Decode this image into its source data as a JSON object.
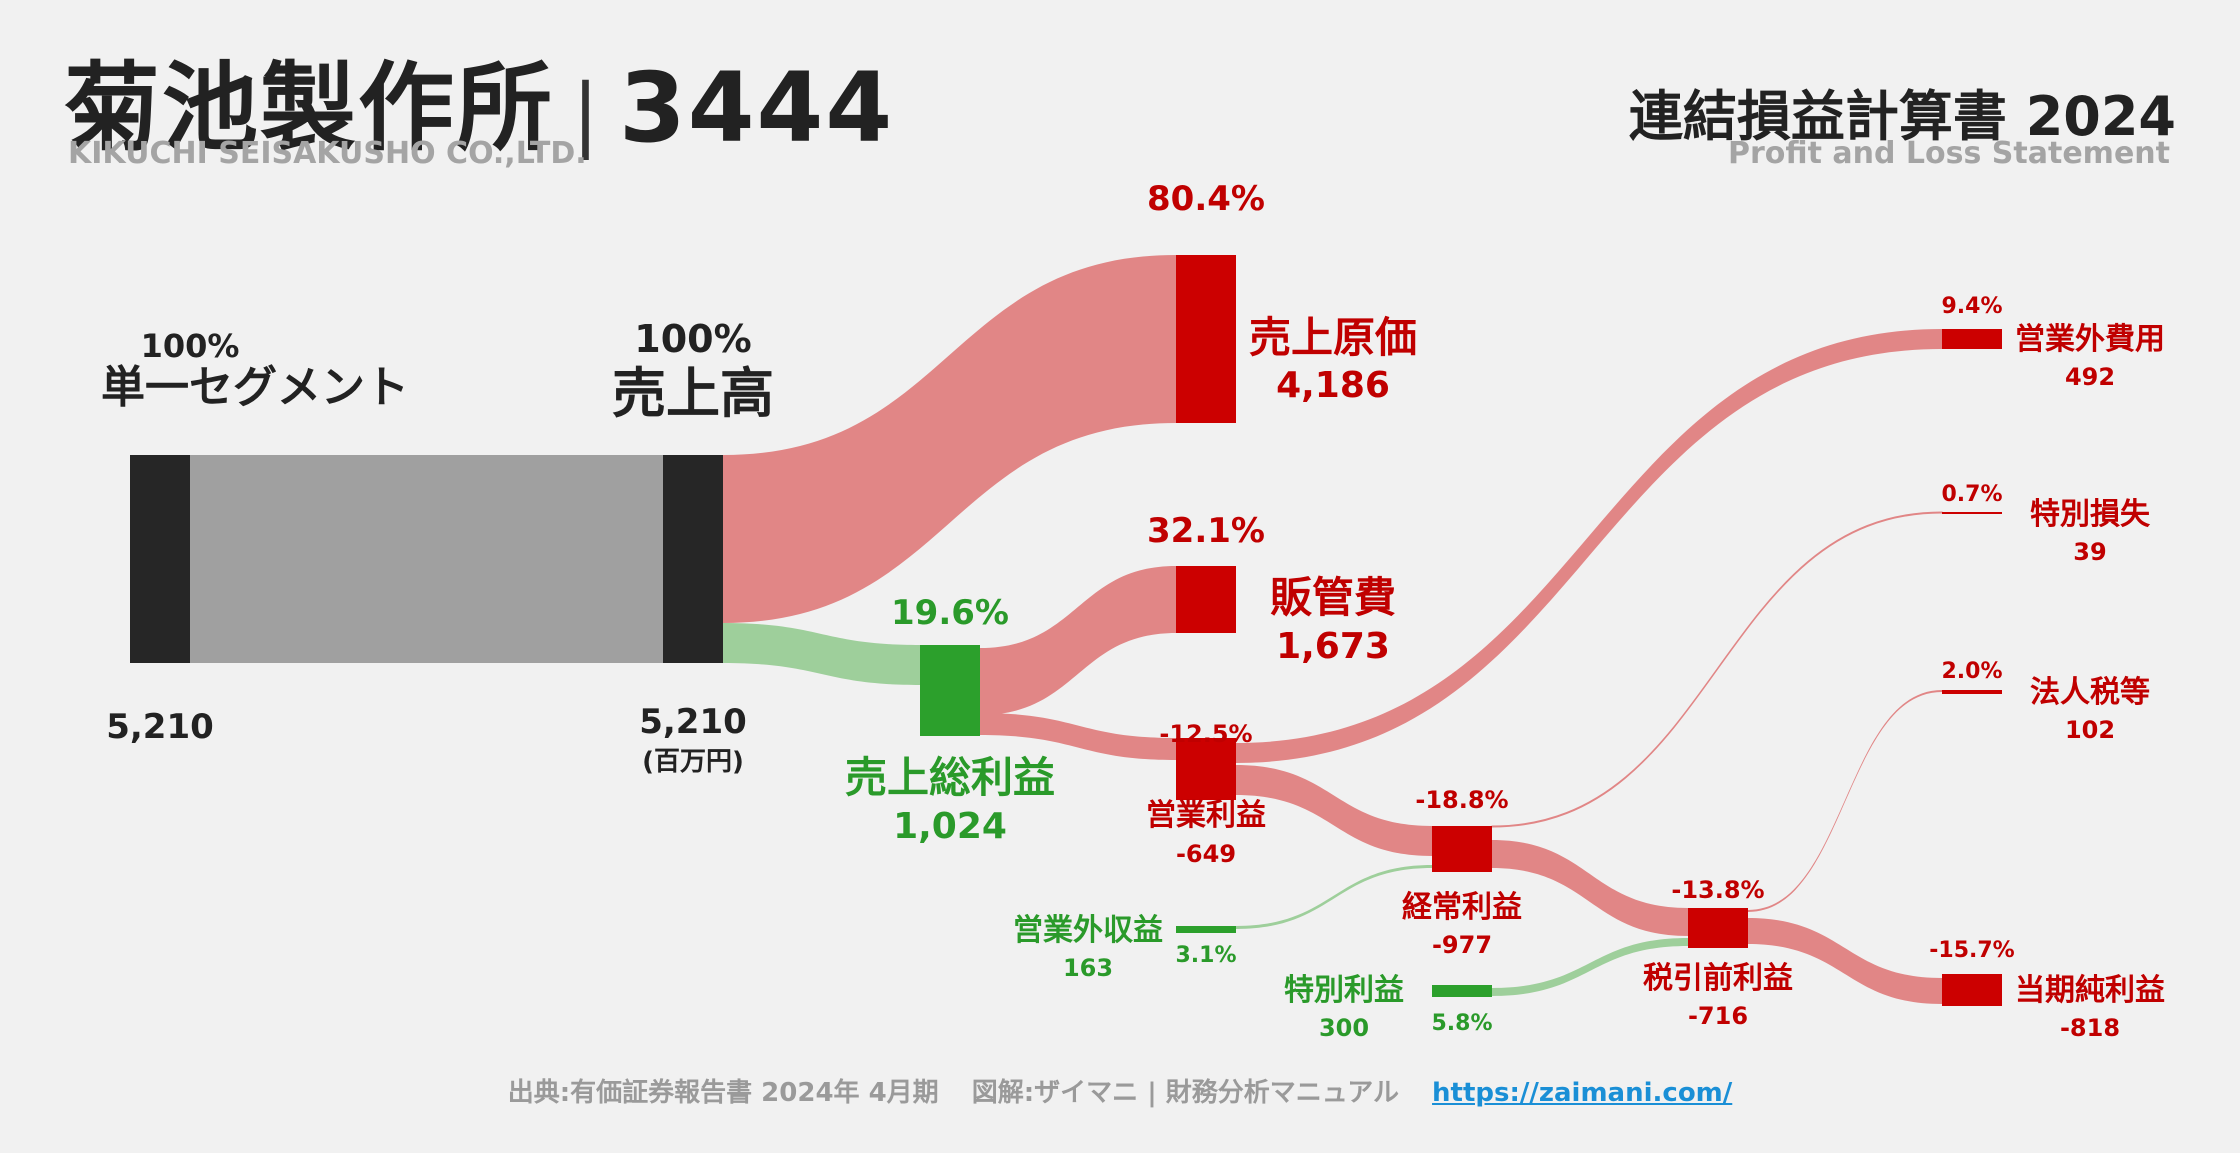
{
  "header": {
    "company_ja": "菊池製作所",
    "separator": "|",
    "ticker": "3444",
    "company_en": "KIKUCHI SEISAKUSHO CO.,LTD.",
    "statement_ja": "連結損益計算書 2024",
    "statement_en": "Profit and Loss Statement"
  },
  "footer": {
    "source": "出典:有価証券報告書 2024年 4月期",
    "credit": "図解:ザイマニ | 財務分析マニュアル",
    "url": "https://zaimani.com/"
  },
  "colors": {
    "dark": "#262626",
    "segment_flow": "#a0a0a0",
    "red_node": "#cc0000",
    "red_flow": "#e18686",
    "green_node": "#2ca02c",
    "green_flow": "#9ecf9b",
    "red_text": "#c00000",
    "green_text": "#2a9a2a",
    "dark_text": "#222222"
  },
  "chart_data": {
    "type": "sankey",
    "unit": "(百万円)",
    "nodes": [
      {
        "id": "segment",
        "label": "単一セグメント",
        "value": "5,210",
        "pct": "100%",
        "color": "dark"
      },
      {
        "id": "sales",
        "label": "売上高",
        "value": "5,210",
        "pct": "100%",
        "color": "dark"
      },
      {
        "id": "cogs",
        "label": "売上原価",
        "value": "4,186",
        "pct": "80.4%",
        "color": "red"
      },
      {
        "id": "gross",
        "label": "売上総利益",
        "value": "1,024",
        "pct": "19.6%",
        "color": "green"
      },
      {
        "id": "sga",
        "label": "販管費",
        "value": "1,673",
        "pct": "32.1%",
        "color": "red"
      },
      {
        "id": "op",
        "label": "営業利益",
        "value": "-649",
        "pct": "-12.5%",
        "color": "red"
      },
      {
        "id": "nonop_inc",
        "label": "営業外収益",
        "value": "163",
        "pct": "3.1%",
        "color": "green"
      },
      {
        "id": "nonop_exp",
        "label": "営業外費用",
        "value": "492",
        "pct": "9.4%",
        "color": "red"
      },
      {
        "id": "ordinary",
        "label": "経常利益",
        "value": "-977",
        "pct": "-18.8%",
        "color": "red"
      },
      {
        "id": "special_gain",
        "label": "特別利益",
        "value": "300",
        "pct": "5.8%",
        "color": "green"
      },
      {
        "id": "special_loss",
        "label": "特別損失",
        "value": "39",
        "pct": "0.7%",
        "color": "red"
      },
      {
        "id": "pretax",
        "label": "税引前利益",
        "value": "-716",
        "pct": "-13.8%",
        "color": "red"
      },
      {
        "id": "tax",
        "label": "法人税等",
        "value": "102",
        "pct": "2.0%",
        "color": "red"
      },
      {
        "id": "net",
        "label": "当期純利益",
        "value": "-818",
        "pct": "-15.7%",
        "color": "red"
      }
    ],
    "links": [
      {
        "source": "segment",
        "target": "sales",
        "value": 5210
      },
      {
        "source": "sales",
        "target": "cogs",
        "value": 4186
      },
      {
        "source": "sales",
        "target": "gross",
        "value": 1024
      },
      {
        "source": "gross",
        "target": "sga",
        "value": 1024
      },
      {
        "source": "op",
        "target": "sga",
        "value": 649
      },
      {
        "source": "op",
        "target": "nonop_exp",
        "value": 492
      },
      {
        "source": "ordinary",
        "target": "op",
        "value": 649
      },
      {
        "source": "nonop_inc",
        "target": "ordinary",
        "value": 163
      },
      {
        "source": "ordinary",
        "target": "special_loss",
        "value": 39
      },
      {
        "source": "pretax",
        "target": "ordinary",
        "value": 977
      },
      {
        "source": "special_gain",
        "target": "pretax",
        "value": 300
      },
      {
        "source": "pretax",
        "target": "tax",
        "value": 102
      },
      {
        "source": "net",
        "target": "pretax",
        "value": 818
      }
    ]
  }
}
